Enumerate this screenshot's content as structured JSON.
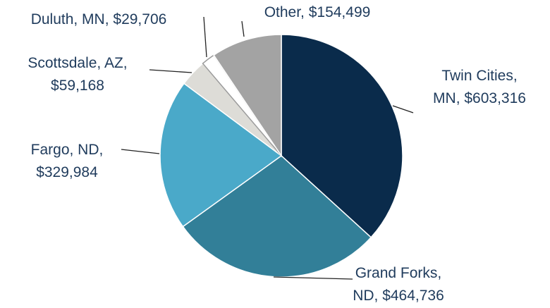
{
  "chart_data": {
    "type": "pie",
    "values": [
      603316,
      464736,
      329984,
      59168,
      29706,
      154499
    ],
    "value_labels": [
      "Twin Cities,\nMN, $603,316",
      "Grand Forks,\nND, $464,736",
      "Fargo, ND,\n$329,984",
      "Scottsdale, AZ,\n$59,168",
      "Duluth, MN, $29,706",
      "Other, $154,499"
    ],
    "colors": [
      "#0a2b4b",
      "#327f98",
      "#4aa9c9",
      "#dddcd7",
      "#ffffff",
      "#a3a3a3"
    ]
  }
}
